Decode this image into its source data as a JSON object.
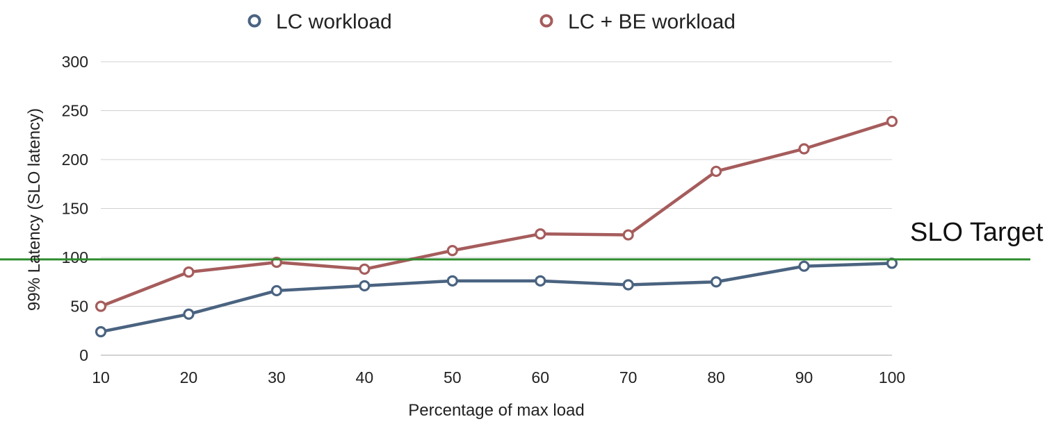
{
  "chart_data": {
    "type": "line",
    "title": "",
    "xlabel": "Percentage of max load",
    "ylabel": "99% Latency (SLO latency)",
    "x": [
      10,
      20,
      30,
      40,
      50,
      60,
      70,
      80,
      90,
      100
    ],
    "x_ticks": [
      "10",
      "20",
      "30",
      "40",
      "50",
      "60",
      "70",
      "80",
      "90",
      "100"
    ],
    "y_ticks": [
      "0",
      "50",
      "100",
      "150",
      "200",
      "250",
      "300"
    ],
    "y_tick_values": [
      0,
      50,
      100,
      150,
      200,
      250,
      300
    ],
    "ylim": [
      0,
      300
    ],
    "grid": true,
    "legend_position": "top",
    "series": [
      {
        "name": "LC workload",
        "color": "#4a6380",
        "values": [
          24,
          42,
          66,
          71,
          76,
          76,
          72,
          75,
          91,
          94
        ]
      },
      {
        "name": "LC + BE workload",
        "color": "#a65c5c",
        "values": [
          50,
          85,
          95,
          88,
          107,
          124,
          123,
          188,
          211,
          239
        ]
      }
    ],
    "reference_line": {
      "label": "SLO Target",
      "value": 98,
      "color": "#2e8b2e"
    }
  }
}
